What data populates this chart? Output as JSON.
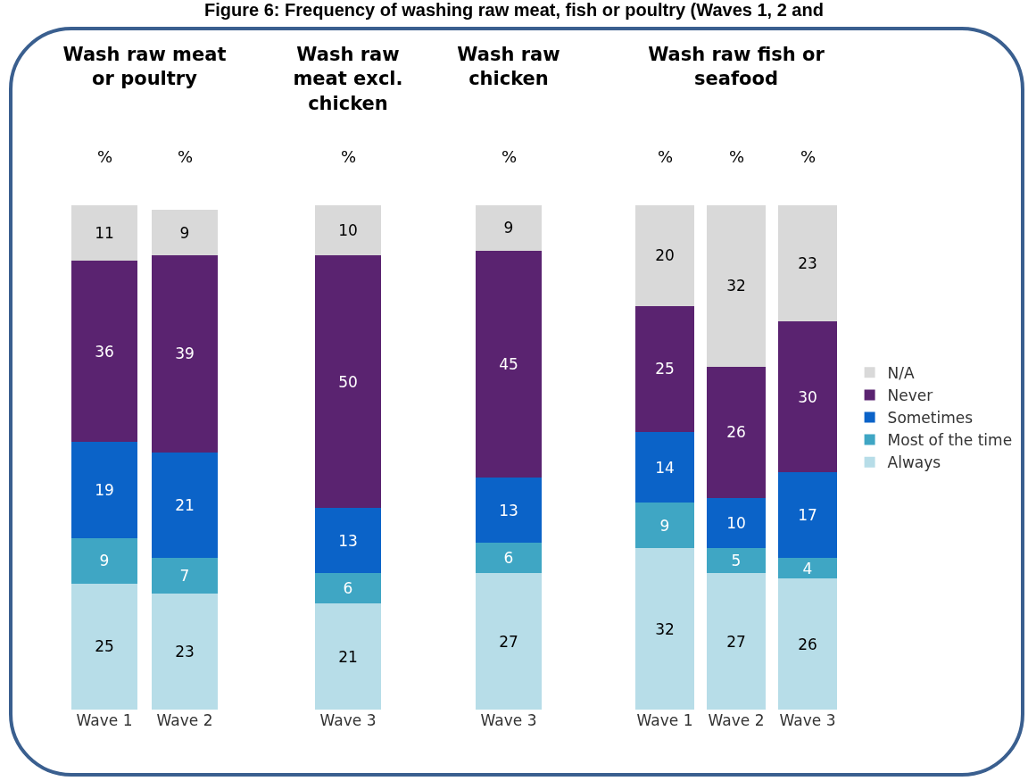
{
  "chart_data": [
    {
      "type": "bar",
      "stacked": true,
      "data_labels": true,
      "legend": false,
      "title": "Wash raw meat or poultry",
      "categories": [
        "Wave 1",
        "Wave 2"
      ],
      "annotations": [
        "%",
        "%",
        "Figure 6: Frequency of washing raw meat, fish or poultry (Waves 1, 2 and"
      ],
      "series": [
        {
          "color": "#b7dde8",
          "values": [
            25,
            23
          ]
        },
        {
          "color": "#3fa6c4",
          "values": [
            9,
            7
          ]
        },
        {
          "color": "#0b63c8",
          "values": [
            19,
            21
          ]
        },
        {
          "color": "#5a2370",
          "values": [
            36,
            39
          ]
        },
        {
          "color": "#d9d9d9",
          "values": [
            11,
            9
          ]
        }
      ]
    },
    {
      "type": "bar",
      "stacked": true,
      "data_labels": true,
      "legend": false,
      "title": "Wash raw meat excl. chicken",
      "categories": [
        "Wave 3"
      ],
      "annotations": [
        "%"
      ],
      "series": [
        {
          "color": "#b7dde8",
          "values": [
            21
          ]
        },
        {
          "color": "#3fa6c4",
          "values": [
            6
          ]
        },
        {
          "color": "#0b63c8",
          "values": [
            13
          ]
        },
        {
          "color": "#5a2370",
          "values": [
            50
          ]
        },
        {
          "color": "#d9d9d9",
          "values": [
            10
          ]
        }
      ]
    },
    {
      "type": "bar",
      "stacked": true,
      "data_labels": true,
      "legend": false,
      "title": "Wash raw chicken",
      "categories": [
        "Wave 3"
      ],
      "annotations": [
        "%"
      ],
      "series": [
        {
          "color": "#b7dde8",
          "values": [
            27
          ]
        },
        {
          "color": "#3fa6c4",
          "values": [
            6
          ]
        },
        {
          "color": "#0b63c8",
          "values": [
            13
          ]
        },
        {
          "color": "#5a2370",
          "values": [
            45
          ]
        },
        {
          "color": "#d9d9d9",
          "values": [
            9
          ]
        }
      ]
    },
    {
      "type": "bar",
      "stacked": true,
      "data_labels": true,
      "legend": "right",
      "title": "Wash raw fish or seafood",
      "categories": [
        "Wave 1",
        "Wave 2",
        "Wave 3"
      ],
      "annotations": [
        "%",
        "%",
        "%"
      ],
      "series": [
        {
          "name": "Always",
          "color": "#b7dde8",
          "values": [
            32,
            27,
            26
          ]
        },
        {
          "name": "Most of the time",
          "color": "#3fa6c4",
          "values": [
            9,
            5,
            4
          ]
        },
        {
          "name": "Sometimes",
          "color": "#0b63c8",
          "values": [
            14,
            10,
            17
          ]
        },
        {
          "name": "Never",
          "color": "#5a2370",
          "values": [
            25,
            26,
            30
          ]
        },
        {
          "name": "N/A",
          "color": "#d9d9d9",
          "values": [
            20,
            32,
            23
          ]
        }
      ]
    }
  ]
}
